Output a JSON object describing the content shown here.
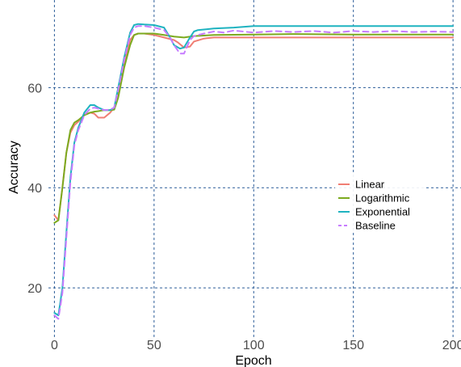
{
  "chart_data": {
    "type": "line",
    "xlabel": "Epoch",
    "ylabel": "Accuracy",
    "xlim": [
      -3,
      204
    ],
    "ylim": [
      10,
      77.5
    ],
    "xticks": [
      0,
      50,
      100,
      150,
      200
    ],
    "yticks": [
      20,
      40,
      60
    ],
    "grid": true,
    "legend_position": "right",
    "series": [
      {
        "name": "Linear",
        "color": "#f07e74",
        "dashed": false,
        "x": [
          0,
          2,
          4,
          6,
          8,
          10,
          12,
          15,
          18,
          20,
          22,
          25,
          28,
          30,
          32,
          35,
          38,
          40,
          42,
          45,
          50,
          55,
          60,
          62,
          65,
          68,
          70,
          75,
          80,
          90,
          100,
          120,
          150,
          180,
          200
        ],
        "y": [
          34.5,
          33.5,
          40,
          47,
          51,
          52.5,
          53.2,
          54.5,
          55,
          54.8,
          54,
          54,
          55,
          56,
          59,
          65,
          69.5,
          70.5,
          70.8,
          70.8,
          70.5,
          70,
          69.5,
          69,
          68,
          68.2,
          69.2,
          69.8,
          70,
          70,
          70,
          70,
          70,
          70,
          70
        ]
      },
      {
        "name": "Logarithmic",
        "color": "#7caa1f",
        "dashed": false,
        "x": [
          0,
          2,
          4,
          6,
          8,
          10,
          12,
          15,
          18,
          20,
          22,
          25,
          28,
          30,
          32,
          35,
          38,
          40,
          42,
          45,
          50,
          55,
          60,
          65,
          70,
          80,
          100,
          120,
          150,
          180,
          200
        ],
        "y": [
          33,
          33.5,
          40,
          47,
          51.5,
          53,
          53.5,
          54.5,
          55,
          55.2,
          55.3,
          55.5,
          55.5,
          55.6,
          58,
          64,
          68.5,
          70.5,
          70.8,
          70.8,
          70.8,
          70.5,
          70.2,
          70,
          70.3,
          70.5,
          70.6,
          70.7,
          70.6,
          70.6,
          70.6
        ]
      },
      {
        "name": "Exponential",
        "color": "#1fb3c0",
        "dashed": false,
        "x": [
          0,
          2,
          4,
          6,
          8,
          10,
          12,
          15,
          18,
          20,
          22,
          25,
          28,
          30,
          32,
          35,
          38,
          40,
          42,
          45,
          50,
          55,
          58,
          60,
          63,
          65,
          68,
          70,
          72,
          75,
          80,
          90,
          100,
          120,
          150,
          180,
          200
        ],
        "y": [
          15,
          14.5,
          20,
          31,
          42,
          49,
          52,
          55,
          56.5,
          56.5,
          56,
          55.5,
          55.5,
          56,
          60,
          66,
          71,
          72.5,
          72.7,
          72.6,
          72.5,
          72,
          70,
          68.5,
          67.8,
          68,
          70,
          71.2,
          71.5,
          71.6,
          71.8,
          72,
          72.3,
          72.3,
          72.3,
          72.3,
          72.3
        ]
      },
      {
        "name": "Baseline",
        "color": "#c77cff",
        "dashed": true,
        "x": [
          0,
          2,
          4,
          6,
          8,
          10,
          12,
          15,
          18,
          20,
          22,
          25,
          28,
          30,
          32,
          35,
          38,
          40,
          42,
          45,
          50,
          55,
          58,
          60,
          63,
          65,
          68,
          70,
          75,
          80,
          85,
          90,
          100,
          110,
          120,
          130,
          140,
          150,
          160,
          170,
          180,
          190,
          200
        ],
        "y": [
          14.5,
          13.8,
          19,
          30,
          41,
          48.5,
          51.5,
          54.5,
          55.8,
          56,
          55.8,
          55.5,
          55.6,
          56,
          59.5,
          65.5,
          70.5,
          72,
          72.3,
          72.3,
          72,
          71.5,
          70,
          68.5,
          66.8,
          66.8,
          69.5,
          70.3,
          70.8,
          71.2,
          71,
          71.4,
          71,
          71.3,
          71.1,
          71.3,
          71,
          71.3,
          71.1,
          71.3,
          71.1,
          71.2,
          71.1
        ]
      }
    ]
  }
}
